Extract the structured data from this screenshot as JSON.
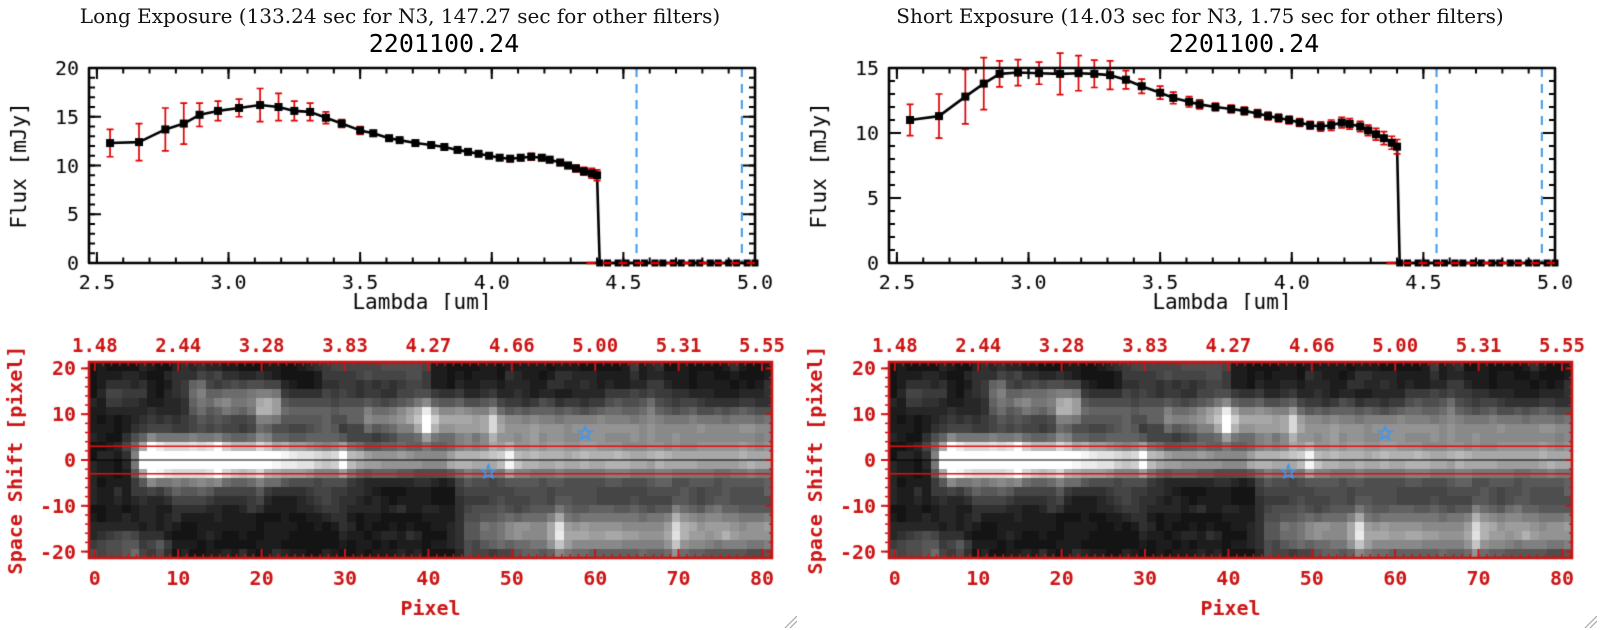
{
  "colors": {
    "red": "#cc1414",
    "error_red": "#dd0000",
    "blue_dash": "#4596ea",
    "black": "#000000",
    "grip_gray": "#a8a8a8"
  },
  "panels": [
    {
      "exposure_title": "Long Exposure (133.24 sec for N3, 147.27 sec for other filters)",
      "object_id": "2201100.24"
    },
    {
      "exposure_title": "Short Exposure (14.03 sec for N3, 1.75 sec for other filters)",
      "object_id": "2201100.24"
    }
  ],
  "chart_data": [
    {
      "type": "line",
      "panel": "long-exposure",
      "title": "2201100.24",
      "xlabel": "Lambda [um]",
      "ylabel": "Flux [mJy]",
      "xlim": [
        2.47,
        5.0
      ],
      "ylim": [
        0,
        20
      ],
      "xticks": [
        2.5,
        3.0,
        3.5,
        4.0,
        4.5,
        5.0
      ],
      "xtick_labels": [
        "2.5",
        "3.0",
        "3.5",
        "4.0",
        "4.5",
        "5.0"
      ],
      "yticks": [
        0,
        5,
        10,
        15,
        20
      ],
      "ytick_labels": [
        "0",
        "5",
        "10",
        "15",
        "20"
      ],
      "x_minor_step": 0.1,
      "y_minor_step": 1,
      "x": [
        2.55,
        2.66,
        2.76,
        2.83,
        2.89,
        2.96,
        3.04,
        3.12,
        3.19,
        3.25,
        3.31,
        3.37,
        3.43,
        3.5,
        3.55,
        3.61,
        3.65,
        3.71,
        3.77,
        3.82,
        3.87,
        3.91,
        3.95,
        3.99,
        4.03,
        4.07,
        4.11,
        4.15,
        4.19,
        4.22,
        4.26,
        4.29,
        4.32,
        4.35,
        4.38,
        4.4
      ],
      "y": [
        12.3,
        12.4,
        13.7,
        14.3,
        15.2,
        15.6,
        15.9,
        16.2,
        16.0,
        15.6,
        15.5,
        14.9,
        14.3,
        13.6,
        13.3,
        12.8,
        12.6,
        12.3,
        12.1,
        11.9,
        11.6,
        11.4,
        11.2,
        11.0,
        10.8,
        10.7,
        10.8,
        10.9,
        10.8,
        10.6,
        10.3,
        10.0,
        9.7,
        9.4,
        9.2,
        9.0
      ],
      "yerr": [
        1.4,
        1.9,
        2.2,
        2.1,
        1.2,
        1.0,
        0.9,
        1.7,
        1.4,
        1.0,
        0.9,
        0.6,
        0.4,
        0.4,
        0.3,
        0.25,
        0.2,
        0.2,
        0.2,
        0.2,
        0.2,
        0.2,
        0.2,
        0.2,
        0.25,
        0.3,
        0.3,
        0.35,
        0.3,
        0.3,
        0.3,
        0.3,
        0.35,
        0.4,
        0.5,
        0.55
      ],
      "zero_tail_x": [
        4.41,
        4.44,
        4.48,
        4.51,
        4.55,
        4.58,
        4.62,
        4.65,
        4.69,
        4.72,
        4.76,
        4.79,
        4.83,
        4.86,
        4.9,
        4.93,
        4.97,
        5.0
      ],
      "vlines": [
        4.55,
        4.95
      ],
      "zero_dash_range": [
        4.36,
        5.0
      ]
    },
    {
      "type": "line",
      "panel": "short-exposure",
      "title": "2201100.24",
      "xlabel": "Lambda [um]",
      "ylabel": "Flux [mJy]",
      "xlim": [
        2.47,
        5.0
      ],
      "ylim": [
        0,
        15
      ],
      "xticks": [
        2.5,
        3.0,
        3.5,
        4.0,
        4.5,
        5.0
      ],
      "xtick_labels": [
        "2.5",
        "3.0",
        "3.5",
        "4.0",
        "4.5",
        "5.0"
      ],
      "yticks": [
        0,
        5,
        10,
        15
      ],
      "ytick_labels": [
        "0",
        "5",
        "10",
        "15"
      ],
      "x_minor_step": 0.1,
      "y_minor_step": 1,
      "x": [
        2.55,
        2.66,
        2.76,
        2.83,
        2.89,
        2.96,
        3.04,
        3.12,
        3.19,
        3.25,
        3.31,
        3.37,
        3.43,
        3.5,
        3.55,
        3.61,
        3.65,
        3.71,
        3.77,
        3.82,
        3.87,
        3.91,
        3.95,
        3.99,
        4.03,
        4.07,
        4.11,
        4.15,
        4.19,
        4.22,
        4.26,
        4.29,
        4.32,
        4.35,
        4.38,
        4.4
      ],
      "y": [
        11.0,
        11.3,
        12.8,
        13.8,
        14.55,
        14.65,
        14.6,
        14.55,
        14.6,
        14.55,
        14.45,
        14.1,
        13.6,
        13.1,
        12.7,
        12.4,
        12.2,
        12.0,
        11.85,
        11.7,
        11.5,
        11.3,
        11.15,
        11.0,
        10.8,
        10.6,
        10.5,
        10.6,
        10.8,
        10.7,
        10.5,
        10.2,
        9.9,
        9.6,
        9.25,
        8.95
      ],
      "yerr": [
        1.2,
        1.7,
        2.1,
        2.0,
        1.0,
        1.0,
        0.85,
        1.6,
        1.35,
        1.05,
        1.1,
        0.7,
        0.55,
        0.5,
        0.45,
        0.4,
        0.35,
        0.3,
        0.3,
        0.3,
        0.3,
        0.3,
        0.3,
        0.3,
        0.3,
        0.3,
        0.35,
        0.4,
        0.4,
        0.4,
        0.4,
        0.4,
        0.45,
        0.5,
        0.5,
        0.55
      ],
      "zero_tail_x": [
        4.41,
        4.44,
        4.48,
        4.51,
        4.55,
        4.58,
        4.62,
        4.65,
        4.69,
        4.72,
        4.76,
        4.79,
        4.83,
        4.86,
        4.9,
        4.93,
        4.97,
        5.0
      ],
      "vlines": [
        4.55,
        4.95
      ],
      "zero_dash_range": [
        4.36,
        5.0
      ]
    },
    {
      "type": "heatmap",
      "panel": "long-exposure-2d-spectrum",
      "xlabel": "Pixel",
      "ylabel": "Space Shift [pixel]",
      "xlim": [
        -0.7,
        81.2
      ],
      "ylim": [
        -21.4,
        21.4
      ],
      "xticks": [
        0,
        10,
        20,
        30,
        40,
        50,
        60,
        70,
        80
      ],
      "xtick_labels": [
        "0",
        "10",
        "20",
        "30",
        "40",
        "50",
        "60",
        "70",
        "80"
      ],
      "yticks": [
        20,
        10,
        0,
        -10,
        -20
      ],
      "ytick_labels": [
        "20",
        "10",
        "0",
        "-10",
        "-20"
      ],
      "top_tick_labels": [
        "1.48",
        "2.44",
        "3.28",
        "3.83",
        "4.27",
        "4.66",
        "5.00",
        "5.31",
        "5.55"
      ],
      "extraction_lines": [
        3,
        -3
      ],
      "center_line": 0,
      "stars": [
        [
          58.8,
          5.8
        ],
        [
          47.2,
          -2.6
        ]
      ],
      "seed": 20110024,
      "grid": {
        "cols": 82,
        "rows": 22
      },
      "bands": [
        {
          "p0": 5,
          "p1": 7,
          "s": 0,
          "sig": 2.1,
          "a0": 0.15,
          "a1": 1.25
        },
        {
          "p0": 7,
          "p1": 15,
          "s": 0,
          "sig": 2.3,
          "a0": 1.3,
          "a1": 1.15
        },
        {
          "p0": 15,
          "p1": 30,
          "s": 0,
          "sig": 2.1,
          "a0": 1.1,
          "a1": 0.6
        },
        {
          "p0": 30,
          "p1": 50,
          "s": 0,
          "sig": 2.0,
          "a0": 0.6,
          "a1": 0.48
        },
        {
          "p0": 50,
          "p1": 81,
          "s": 0,
          "sig": 2.0,
          "a0": 0.48,
          "a1": 0.4
        },
        {
          "p0": 5,
          "p1": 20,
          "s": 0,
          "sig": 5.5,
          "a0": 0.22,
          "a1": 0.28
        },
        {
          "p0": 20,
          "p1": 32,
          "s": 0,
          "sig": 5.0,
          "a0": 0.25,
          "a1": 0.1
        },
        {
          "p0": 12,
          "p1": 22,
          "s": 13,
          "sig": 2.4,
          "a0": 0.3,
          "a1": 0.42
        },
        {
          "p0": 20,
          "p1": 33,
          "s": 10.5,
          "sig": 2.4,
          "a0": 0.3,
          "a1": 0.22
        },
        {
          "p0": 33,
          "p1": 40,
          "s": 9,
          "sig": 2.6,
          "a0": 0.3,
          "a1": 0.7
        },
        {
          "p0": 40,
          "p1": 48,
          "s": 8.5,
          "sig": 2.7,
          "a0": 0.7,
          "a1": 0.45
        },
        {
          "p0": 48,
          "p1": 81,
          "s": 7,
          "sig": 3.0,
          "a0": 0.42,
          "a1": 0.3
        },
        {
          "p0": 44,
          "p1": 81,
          "s": -2,
          "sig": 8.5,
          "a0": 0.15,
          "a1": 0.2
        },
        {
          "p0": 45,
          "p1": 56,
          "s": -16,
          "sig": 3.3,
          "a0": 0.2,
          "a1": 0.5
        },
        {
          "p0": 56,
          "p1": 70,
          "s": -16.5,
          "sig": 3.4,
          "a0": 0.5,
          "a1": 0.45
        },
        {
          "p0": 70,
          "p1": 81,
          "s": -16,
          "sig": 3.4,
          "a0": 0.5,
          "a1": 0.42
        },
        {
          "p0": 2,
          "p1": 6,
          "s": 14,
          "sig": 2.0,
          "a0": 0.14,
          "a1": 0.1
        },
        {
          "p0": 9,
          "p1": 13,
          "s": 16,
          "sig": 2.0,
          "a0": 0.05,
          "a1": 0.2
        },
        {
          "p0": 10,
          "p1": 14,
          "s": -8,
          "sig": 2.0,
          "a0": 0.12,
          "a1": 0.1
        },
        {
          "p0": 2,
          "p1": 5,
          "s": -18,
          "sig": 2.0,
          "a0": 0.12,
          "a1": 0.08
        },
        {
          "p0": 27,
          "p1": 31,
          "s": -9,
          "sig": 2.0,
          "a0": 0.1,
          "a1": 0.1
        },
        {
          "p0": 62,
          "p1": 68,
          "s": 13,
          "sig": 2.2,
          "a0": 0.1,
          "a1": 0.12
        },
        {
          "p0": 28,
          "p1": 40,
          "s": 20,
          "sig": 3.0,
          "a0": 0.15,
          "a1": 0.2
        },
        {
          "p0": 0,
          "p1": 8,
          "s": -20,
          "sig": 3.0,
          "a0": 0.12,
          "a1": 0.15
        }
      ]
    },
    {
      "type": "heatmap",
      "panel": "short-exposure-2d-spectrum",
      "duplicate_of": 2,
      "note": "identical content to index 2"
    }
  ]
}
